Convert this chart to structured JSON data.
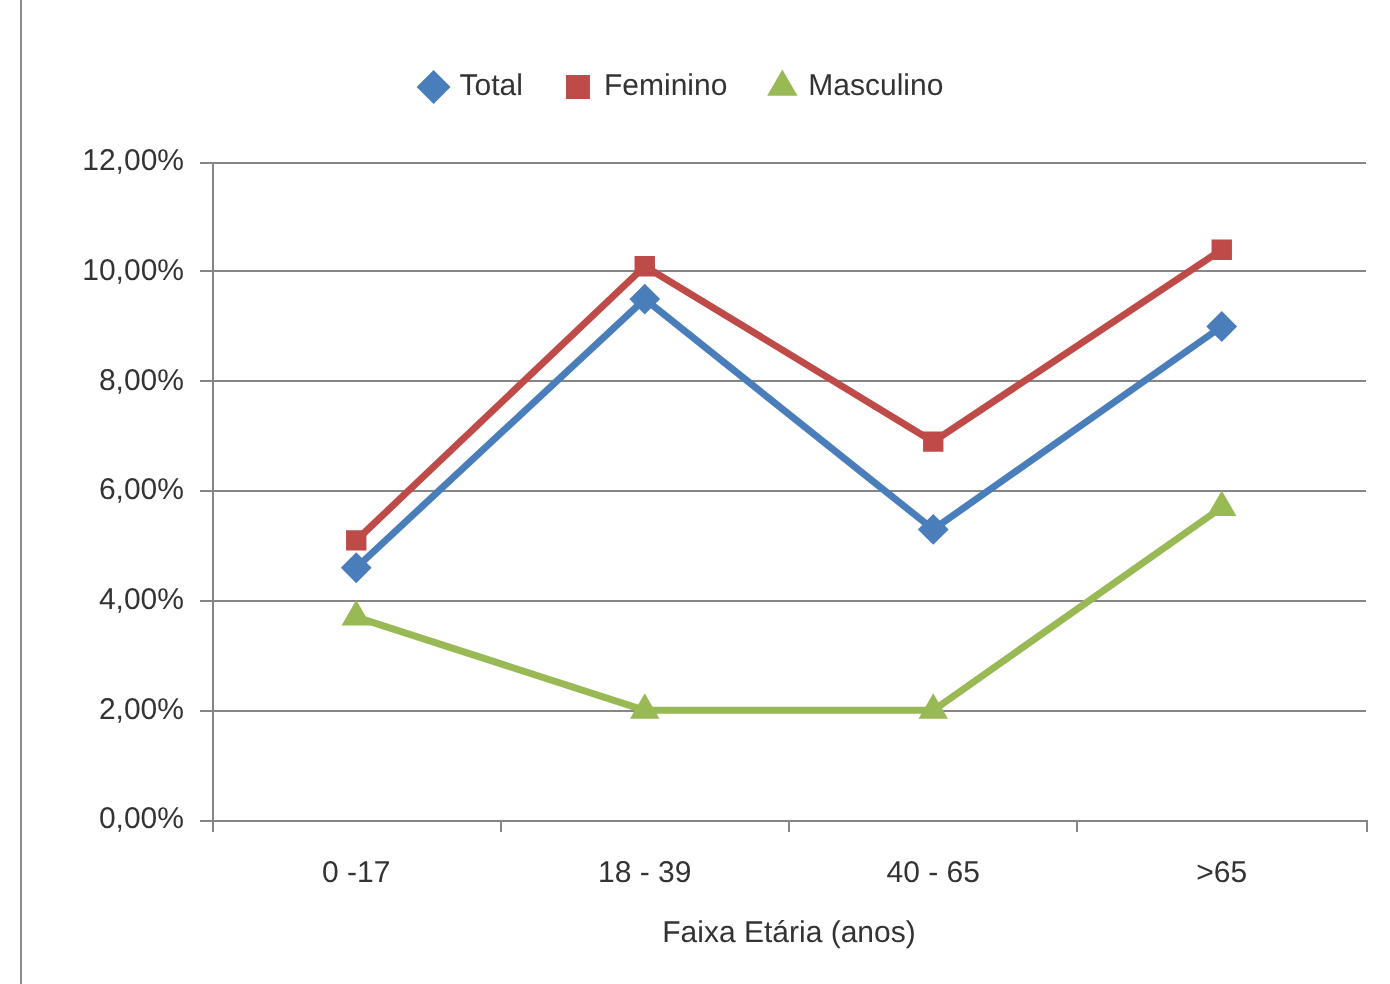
{
  "chart_data": {
    "type": "line",
    "xlabel": "Faixa Etária (anos)",
    "categories": [
      "0 -17",
      "18 - 39",
      "40 - 65",
      ">65"
    ],
    "series": [
      {
        "name": "Total",
        "color": "#4a7ebb",
        "marker": "diamond",
        "values": [
          4.6,
          9.5,
          5.3,
          9.0
        ]
      },
      {
        "name": "Feminino",
        "color": "#be4b48",
        "marker": "square",
        "values": [
          5.1,
          10.1,
          6.9,
          10.4
        ]
      },
      {
        "name": "Masculino",
        "color": "#98b954",
        "marker": "triangle",
        "values": [
          3.7,
          2.0,
          2.0,
          5.7
        ]
      }
    ],
    "ylim": [
      0,
      12
    ],
    "yticks": [
      {
        "value": 0,
        "label": "0,00%"
      },
      {
        "value": 2,
        "label": "2,00%"
      },
      {
        "value": 4,
        "label": "4,00%"
      },
      {
        "value": 6,
        "label": "6,00%"
      },
      {
        "value": 8,
        "label": "8,00%"
      },
      {
        "value": 10,
        "label": "10,00%"
      },
      {
        "value": 12,
        "label": "12,00%"
      }
    ],
    "grid": "y",
    "legend": "top",
    "line_style": "solid"
  }
}
